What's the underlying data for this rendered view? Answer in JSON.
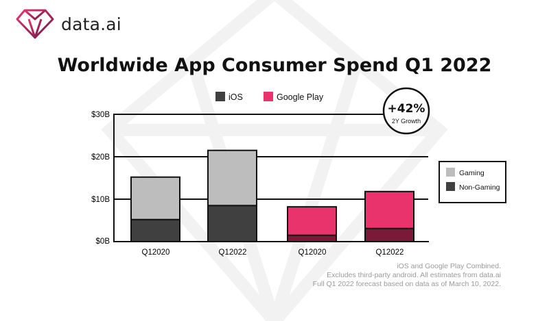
{
  "brand": {
    "name": "data.ai",
    "logo_icon": "diamond-logo-icon"
  },
  "title": "Worldwide App Consumer Spend Q1 2022",
  "legend_top": [
    {
      "label": "iOS",
      "color": "#404040"
    },
    {
      "label": "Google Play",
      "color": "#e8336d"
    }
  ],
  "legend_side": [
    {
      "label": "Gaming",
      "color": "#bdbdbd"
    },
    {
      "label": "Non-Gaming",
      "color": "#404040"
    }
  ],
  "growth_badge": {
    "value": "+42%",
    "label": "2Y Growth"
  },
  "colors": {
    "ios_gaming": "#bdbdbd",
    "ios_non_gaming": "#404040",
    "gp_gaming": "#e8336d",
    "gp_non_gaming": "#7a1a38",
    "axis": "#111111"
  },
  "chart_data": {
    "type": "bar",
    "stacked": true,
    "categories": [
      "Q12020",
      "Q12022",
      "Q12020",
      "Q12022"
    ],
    "platform": [
      "iOS",
      "iOS",
      "Google Play",
      "Google Play"
    ],
    "series": [
      {
        "name": "Non-Gaming",
        "values": [
          5.2,
          8.5,
          1.5,
          3.1
        ]
      },
      {
        "name": "Gaming",
        "values": [
          10.0,
          13.0,
          6.7,
          8.7
        ]
      }
    ],
    "ylim": [
      0,
      30
    ],
    "yticks": [
      0,
      10,
      20,
      30
    ],
    "ytick_labels": [
      "$0B",
      "$10B",
      "$20B",
      "$30B"
    ],
    "grid": true
  },
  "footnote": [
    "iOS and Google Play Combined.",
    "Excludes third-party android. All estimates from data.ai",
    "Full Q1 2022 forecast based on data as of March 10, 2022."
  ]
}
